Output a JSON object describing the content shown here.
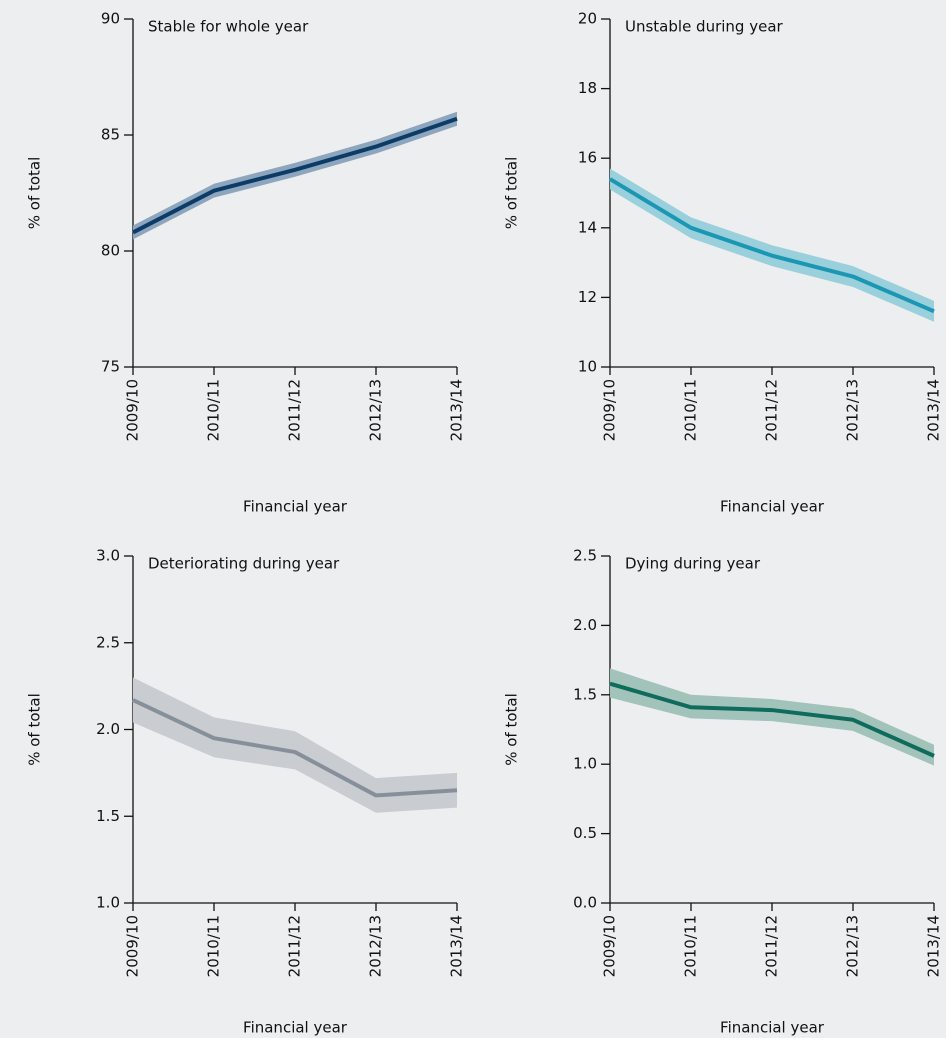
{
  "chart_data": [
    {
      "type": "line",
      "title": "Stable for whole year",
      "x_label": "Financial year",
      "y_label": "% of total",
      "categories": [
        "2009/10",
        "2010/11",
        "2011/12",
        "2012/13",
        "2013/14"
      ],
      "values": [
        80.8,
        82.6,
        83.5,
        84.5,
        85.7
      ],
      "lower": [
        80.5,
        82.3,
        83.2,
        84.2,
        85.4
      ],
      "upper": [
        81.1,
        82.9,
        83.8,
        84.8,
        86.0
      ],
      "color": "#0b3c68",
      "band_color": "#8ea5be",
      "ylim": [
        75,
        90
      ],
      "yticks": [
        75,
        80,
        85,
        90
      ]
    },
    {
      "type": "line",
      "title": "Unstable during year",
      "x_label": "Financial year",
      "y_label": "% of total",
      "categories": [
        "2009/10",
        "2010/11",
        "2011/12",
        "2012/13",
        "2013/14"
      ],
      "values": [
        15.4,
        14.0,
        13.2,
        12.6,
        11.6
      ],
      "lower": [
        15.1,
        13.7,
        12.9,
        12.3,
        11.3
      ],
      "upper": [
        15.7,
        14.3,
        13.5,
        12.9,
        11.9
      ],
      "color": "#1b97b3",
      "band_color": "#9acfdc",
      "ylim": [
        10,
        20
      ],
      "yticks": [
        10,
        12,
        14,
        16,
        18,
        20
      ]
    },
    {
      "type": "line",
      "title": "Deteriorating during year",
      "x_label": "Financial year",
      "y_label": "% of total",
      "categories": [
        "2009/10",
        "2010/11",
        "2011/12",
        "2012/13",
        "2013/14"
      ],
      "values": [
        2.17,
        1.95,
        1.87,
        1.62,
        1.65
      ],
      "lower": [
        2.04,
        1.84,
        1.77,
        1.52,
        1.55
      ],
      "upper": [
        2.3,
        2.07,
        1.99,
        1.72,
        1.75
      ],
      "color": "#87909a",
      "band_color": "#c9ccd1",
      "ylim": [
        1.0,
        3.0
      ],
      "yticks": [
        {
          "value": 1.0,
          "label": "1.0"
        },
        1.5,
        {
          "value": 2.0,
          "label": "2.0"
        },
        2.5,
        {
          "value": 3.0,
          "label": "3.0"
        }
      ]
    },
    {
      "type": "line",
      "title": "Dying during year",
      "x_label": "Financial year",
      "y_label": "% of total",
      "categories": [
        "2009/10",
        "2010/11",
        "2011/12",
        "2012/13",
        "2013/14"
      ],
      "values": [
        1.58,
        1.41,
        1.39,
        1.32,
        1.06
      ],
      "lower": [
        1.48,
        1.33,
        1.31,
        1.24,
        0.99
      ],
      "upper": [
        1.69,
        1.5,
        1.47,
        1.4,
        1.14
      ],
      "color": "#0f6b5b",
      "band_color": "#a2c3b9",
      "ylim": [
        0.0,
        2.5
      ],
      "yticks": [
        {
          "value": 0.0,
          "label": "0.0"
        },
        0.5,
        {
          "value": 1.0,
          "label": "1.0"
        },
        1.5,
        {
          "value": 2.0,
          "label": "2.0"
        },
        2.5
      ]
    }
  ]
}
